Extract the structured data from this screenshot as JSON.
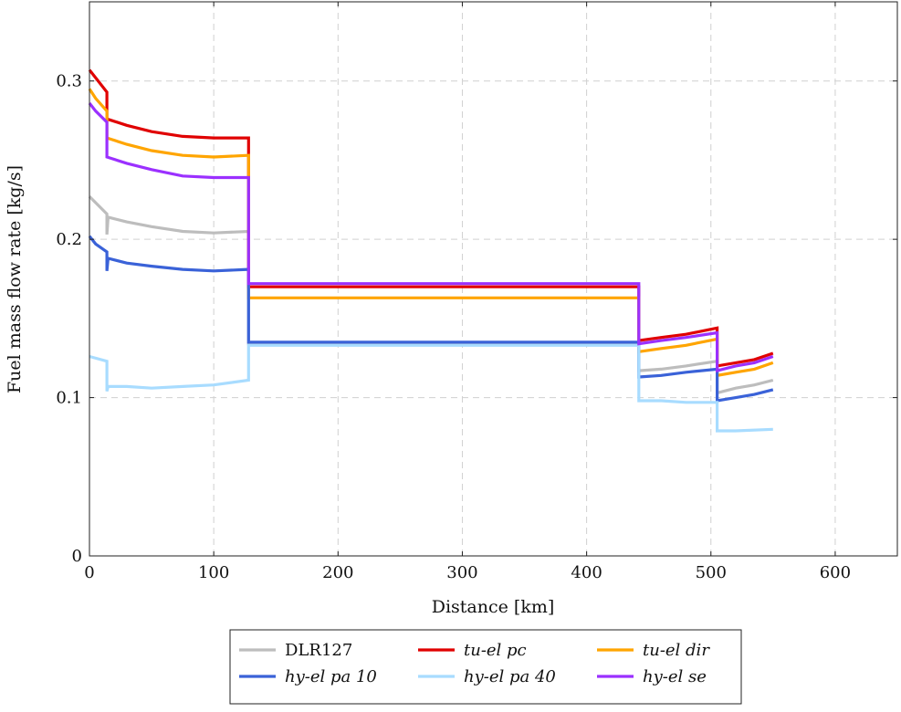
{
  "chart_data": {
    "type": "line",
    "xlabel": "Distance [km]",
    "ylabel": "Fuel mass flow rate [kg/s]",
    "xlim": [
      0,
      650
    ],
    "ylim": [
      0,
      0.35
    ],
    "xticks": [
      0,
      100,
      200,
      300,
      400,
      500,
      600
    ],
    "yticks": [
      0,
      0.1,
      0.2,
      0.3
    ],
    "xtick_labels": [
      "0",
      "100",
      "200",
      "300",
      "400",
      "500",
      "600"
    ],
    "ytick_labels": [
      "0",
      "0.1",
      "0.2",
      "0.3"
    ],
    "grid": true,
    "legend_placement": "bottom-outside",
    "series": [
      {
        "name": "DLR127",
        "italic": false,
        "color": "#bdbdbd",
        "points": [
          [
            0,
            0.227
          ],
          [
            14,
            0.216
          ],
          [
            14,
            0.203
          ],
          [
            15,
            0.214
          ],
          [
            30,
            0.211
          ],
          [
            50,
            0.208
          ],
          [
            75,
            0.205
          ],
          [
            100,
            0.204
          ],
          [
            128,
            0.205
          ],
          [
            128,
            0.134
          ],
          [
            442,
            0.134
          ],
          [
            442,
            0.117
          ],
          [
            460,
            0.118
          ],
          [
            480,
            0.12
          ],
          [
            505,
            0.123
          ],
          [
            505,
            0.103
          ],
          [
            520,
            0.106
          ],
          [
            535,
            0.108
          ],
          [
            550,
            0.111
          ]
        ]
      },
      {
        "name": "tu-el pc",
        "italic": true,
        "color": "#e00000",
        "points": [
          [
            0,
            0.307
          ],
          [
            5,
            0.302
          ],
          [
            14,
            0.293
          ],
          [
            14,
            0.276
          ],
          [
            30,
            0.272
          ],
          [
            50,
            0.268
          ],
          [
            75,
            0.265
          ],
          [
            100,
            0.264
          ],
          [
            128,
            0.264
          ],
          [
            128,
            0.17
          ],
          [
            442,
            0.17
          ],
          [
            442,
            0.136
          ],
          [
            460,
            0.138
          ],
          [
            480,
            0.14
          ],
          [
            505,
            0.144
          ],
          [
            505,
            0.12
          ],
          [
            520,
            0.122
          ],
          [
            535,
            0.124
          ],
          [
            550,
            0.128
          ]
        ]
      },
      {
        "name": "tu-el dir",
        "italic": true,
        "color": "#ffa500",
        "points": [
          [
            0,
            0.295
          ],
          [
            5,
            0.289
          ],
          [
            14,
            0.281
          ],
          [
            14,
            0.264
          ],
          [
            30,
            0.26
          ],
          [
            50,
            0.256
          ],
          [
            75,
            0.253
          ],
          [
            100,
            0.252
          ],
          [
            128,
            0.253
          ],
          [
            128,
            0.163
          ],
          [
            442,
            0.163
          ],
          [
            442,
            0.129
          ],
          [
            460,
            0.131
          ],
          [
            480,
            0.133
          ],
          [
            505,
            0.137
          ],
          [
            505,
            0.114
          ],
          [
            520,
            0.116
          ],
          [
            535,
            0.118
          ],
          [
            550,
            0.122
          ]
        ]
      },
      {
        "name": "hy-el pa 10",
        "italic": true,
        "color": "#3a62d8",
        "points": [
          [
            0,
            0.202
          ],
          [
            5,
            0.197
          ],
          [
            14,
            0.192
          ],
          [
            14,
            0.18
          ],
          [
            15,
            0.188
          ],
          [
            30,
            0.185
          ],
          [
            50,
            0.183
          ],
          [
            75,
            0.181
          ],
          [
            100,
            0.18
          ],
          [
            128,
            0.181
          ],
          [
            128,
            0.135
          ],
          [
            442,
            0.135
          ],
          [
            442,
            0.113
          ],
          [
            460,
            0.114
          ],
          [
            480,
            0.116
          ],
          [
            505,
            0.118
          ],
          [
            505,
            0.098
          ],
          [
            520,
            0.1
          ],
          [
            535,
            0.102
          ],
          [
            550,
            0.105
          ]
        ]
      },
      {
        "name": "hy-el pa 40",
        "italic": true,
        "color": "#a8dcff",
        "points": [
          [
            0,
            0.126
          ],
          [
            14,
            0.123
          ],
          [
            14,
            0.104
          ],
          [
            15,
            0.107
          ],
          [
            30,
            0.107
          ],
          [
            50,
            0.106
          ],
          [
            75,
            0.107
          ],
          [
            100,
            0.108
          ],
          [
            128,
            0.111
          ],
          [
            128,
            0.133
          ],
          [
            442,
            0.133
          ],
          [
            442,
            0.098
          ],
          [
            460,
            0.098
          ],
          [
            480,
            0.097
          ],
          [
            505,
            0.097
          ],
          [
            505,
            0.079
          ],
          [
            520,
            0.079
          ],
          [
            550,
            0.08
          ]
        ]
      },
      {
        "name": "hy-el se",
        "italic": true,
        "color": "#9b30ff",
        "points": [
          [
            0,
            0.286
          ],
          [
            5,
            0.281
          ],
          [
            14,
            0.274
          ],
          [
            14,
            0.252
          ],
          [
            30,
            0.248
          ],
          [
            50,
            0.244
          ],
          [
            75,
            0.24
          ],
          [
            100,
            0.239
          ],
          [
            128,
            0.239
          ],
          [
            128,
            0.172
          ],
          [
            442,
            0.172
          ],
          [
            442,
            0.134
          ],
          [
            460,
            0.136
          ],
          [
            480,
            0.138
          ],
          [
            505,
            0.141
          ],
          [
            505,
            0.117
          ],
          [
            520,
            0.12
          ],
          [
            535,
            0.122
          ],
          [
            550,
            0.126
          ]
        ]
      }
    ]
  }
}
